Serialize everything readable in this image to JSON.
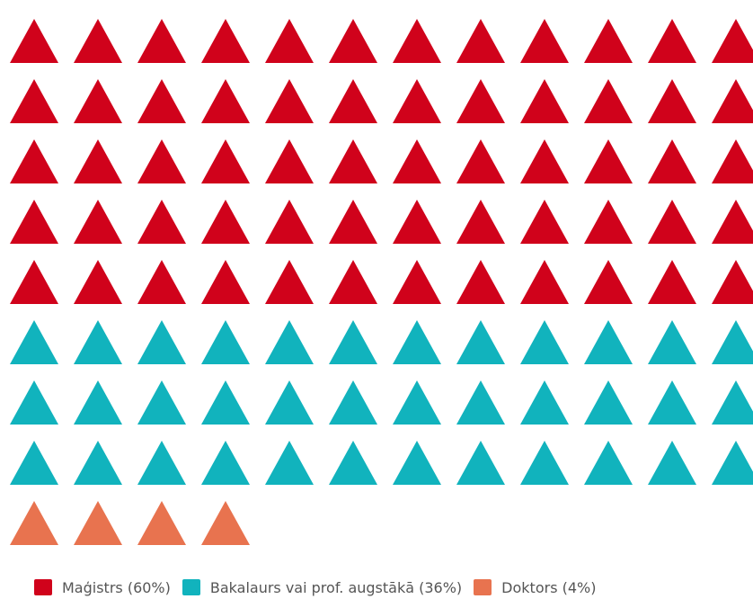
{
  "chart_data": {
    "type": "waffle",
    "icon": "triangle-icon",
    "series": [
      {
        "name": "Maģistrs (60%)",
        "value": 60,
        "color": "#d0021b",
        "icons_visible": 60
      },
      {
        "name": "Bakalaurs vai prof. augstākā (36%)",
        "value": 36,
        "color": "#11b3bd",
        "icons_visible": 36
      },
      {
        "name": "Doktors (4%)",
        "value": 4,
        "color": "#e8734f",
        "icons_visible": 4
      }
    ],
    "legend_position": "bottom-left"
  }
}
